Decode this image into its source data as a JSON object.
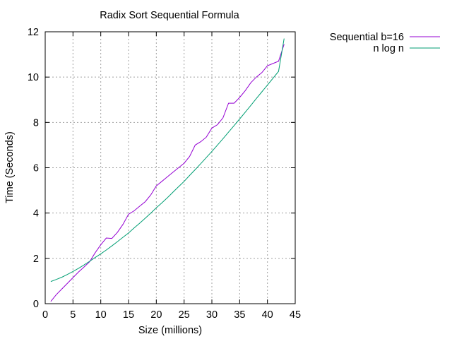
{
  "chart_data": {
    "type": "line",
    "title": "Radix Sort Sequential Formula",
    "xlabel": "Size (millions)",
    "ylabel": "Time (Seconds)",
    "xlim": [
      0,
      45
    ],
    "ylim": [
      0,
      12
    ],
    "xticks": [
      0,
      5,
      10,
      15,
      20,
      25,
      30,
      35,
      40,
      45
    ],
    "yticks": [
      0,
      2,
      4,
      6,
      8,
      10,
      12
    ],
    "grid": true,
    "legend_position": "top-right, outside plot area",
    "series": [
      {
        "name": "Sequential b=16",
        "color": "#9400d3",
        "x": [
          1,
          2,
          3,
          4,
          5,
          6,
          7,
          8,
          9,
          10,
          11,
          12,
          13,
          14,
          15,
          16,
          17,
          18,
          19,
          20,
          21,
          22,
          23,
          24,
          25,
          26,
          27,
          28,
          29,
          30,
          31,
          32,
          33,
          34,
          35,
          36,
          37,
          38,
          39,
          40,
          41,
          42,
          43
        ],
        "values": [
          0.1,
          0.4,
          0.65,
          0.9,
          1.15,
          1.4,
          1.62,
          1.85,
          2.25,
          2.6,
          2.9,
          2.88,
          3.15,
          3.5,
          3.95,
          4.1,
          4.3,
          4.5,
          4.8,
          5.2,
          5.4,
          5.6,
          5.8,
          6.0,
          6.2,
          6.5,
          7.0,
          7.15,
          7.35,
          7.75,
          7.9,
          8.2,
          8.85,
          8.85,
          9.1,
          9.4,
          9.75,
          10.0,
          10.2,
          10.5,
          10.6,
          10.7,
          11.45
        ]
      },
      {
        "name": "n log n",
        "color": "#009e73",
        "x": [
          1,
          2,
          3,
          4,
          5,
          6,
          7,
          8,
          9,
          10,
          11,
          12,
          13,
          14,
          15,
          16,
          17,
          18,
          19,
          20,
          21,
          22,
          23,
          24,
          25,
          26,
          27,
          28,
          29,
          30,
          31,
          32,
          33,
          34,
          35,
          36,
          37,
          38,
          39,
          40,
          41,
          42,
          43
        ],
        "values": [
          0.98,
          1.07,
          1.17,
          1.29,
          1.42,
          1.56,
          1.71,
          1.87,
          2.04,
          2.2,
          2.37,
          2.55,
          2.74,
          2.93,
          3.12,
          3.34,
          3.55,
          3.77,
          4.0,
          4.23,
          4.45,
          4.68,
          4.92,
          5.16,
          5.4,
          5.66,
          5.92,
          6.18,
          6.45,
          6.72,
          7.0,
          7.28,
          7.57,
          7.86,
          8.15,
          8.45,
          8.75,
          9.05,
          9.35,
          9.65,
          9.95,
          10.25,
          11.7
        ]
      }
    ]
  }
}
